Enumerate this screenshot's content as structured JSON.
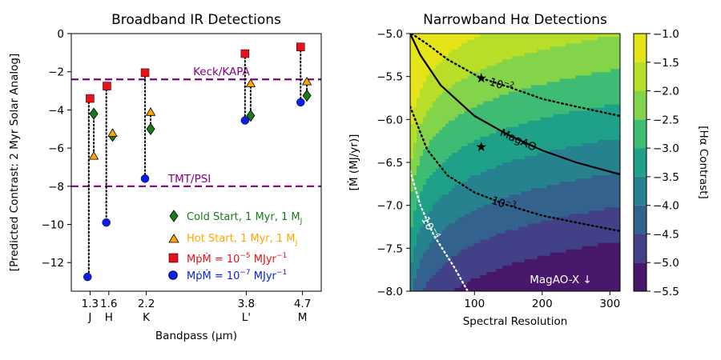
{
  "chart_data": [
    {
      "type": "scatter",
      "title": "Broadband IR Detections",
      "xlabel": "Bandpass (μm)",
      "ylabel": "[Predicted Contrast: 2 Myr Solar Analog]",
      "xlim": [
        1.0,
        5.0
      ],
      "ylim": [
        -13.5,
        0
      ],
      "yticks": [
        0,
        -2,
        -4,
        -6,
        -8,
        -10,
        -12
      ],
      "ytick_labels": [
        "0",
        "−2",
        "−4",
        "−6",
        "−8",
        "−10",
        "−12"
      ],
      "xticks": [
        {
          "x": 1.3,
          "value": "1.3",
          "band": "J"
        },
        {
          "x": 1.6,
          "value": "1.6",
          "band": "H"
        },
        {
          "x": 2.2,
          "value": "2.2",
          "band": "K"
        },
        {
          "x": 3.8,
          "value": "3.8",
          "band": "L'"
        },
        {
          "x": 4.7,
          "value": "4.7",
          "band": "M"
        }
      ],
      "reference_lines": [
        {
          "y": -2.4,
          "label": "Keck/KAPA",
          "label_x": 2.95
        },
        {
          "y": -8.0,
          "label": "TMT/PSI",
          "label_x": 2.55
        }
      ],
      "series": [
        {
          "name": "Cold Start, 1 Myr, 1 MJ",
          "legend_main": "Cold Start, 1 Myr, 1 M",
          "legend_sub": "J",
          "color": "#1a7a1a",
          "marker": "diamond",
          "points": [
            {
              "x": 1.36,
              "y": -4.2
            },
            {
              "x": 1.66,
              "y": -5.35
            },
            {
              "x": 2.27,
              "y": -5.0
            },
            {
              "x": 3.87,
              "y": -4.3
            },
            {
              "x": 4.77,
              "y": -3.25
            }
          ]
        },
        {
          "name": "Hot Start, 1 Myr, 1 MJ",
          "legend_main": "Hot Start, 1 Myr, 1 M",
          "legend_sub": "J",
          "color": "#ffa500",
          "marker": "triangle",
          "points": [
            {
              "x": 1.36,
              "y": -6.4
            },
            {
              "x": 1.66,
              "y": -5.2
            },
            {
              "x": 2.27,
              "y": -4.1
            },
            {
              "x": 3.87,
              "y": -2.6
            },
            {
              "x": 4.77,
              "y": -2.5
            }
          ]
        },
        {
          "name": "MpMdot = 10^-5 MJ yr^-1",
          "legend_expr": "MṗṀ = 10",
          "legend_exp": "−5",
          "legend_unit": " MJyr",
          "legend_unit_exp": "−1",
          "color": "#e8111b",
          "marker": "square",
          "points": [
            {
              "x": 1.3,
              "y": -3.4
            },
            {
              "x": 1.57,
              "y": -2.75
            },
            {
              "x": 2.18,
              "y": -2.05
            },
            {
              "x": 3.78,
              "y": -1.05
            },
            {
              "x": 4.67,
              "y": -0.7
            }
          ]
        },
        {
          "name": "MpMdot = 10^-7 MJ yr^-1",
          "legend_expr": "MṗṀ = 10",
          "legend_exp": "−7",
          "legend_unit": " MJyr",
          "legend_unit_exp": "−1",
          "color": "#0a1ee6",
          "marker": "circle",
          "points": [
            {
              "x": 1.26,
              "y": -12.75
            },
            {
              "x": 1.56,
              "y": -9.9
            },
            {
              "x": 2.18,
              "y": -7.6
            },
            {
              "x": 3.78,
              "y": -4.55
            },
            {
              "x": 4.67,
              "y": -3.6
            }
          ]
        }
      ],
      "connectors": [
        {
          "x": 1.28,
          "from": -3.4,
          "to": -12.75
        },
        {
          "x": 1.56,
          "from": -2.75,
          "to": -9.9
        },
        {
          "x": 2.18,
          "from": -2.05,
          "to": -7.6
        },
        {
          "x": 3.78,
          "from": -1.05,
          "to": -4.55
        },
        {
          "x": 4.67,
          "from": -0.7,
          "to": -3.6
        },
        {
          "x": 1.36,
          "from": -4.2,
          "to": -6.4
        },
        {
          "x": 1.66,
          "from": -5.2,
          "to": -5.35
        },
        {
          "x": 2.27,
          "from": -4.1,
          "to": -5.0
        },
        {
          "x": 3.87,
          "from": -2.6,
          "to": -4.3
        },
        {
          "x": 4.77,
          "from": -2.5,
          "to": -3.25
        }
      ]
    },
    {
      "type": "heatmap",
      "title": "Narrowband Hα Detections",
      "xlabel": "Spectral Resolution",
      "ylabel": "[Ṁ (MJ/yr)]",
      "xlim": [
        5,
        315
      ],
      "ylim": [
        -8.0,
        -5.0
      ],
      "xticks": [
        100,
        200,
        300
      ],
      "yticks": [
        -5.0,
        -5.5,
        -6.0,
        -6.5,
        -7.0,
        -7.5,
        -8.0
      ],
      "ytick_labels": [
        "−5.0",
        "−5.5",
        "−6.0",
        "−6.5",
        "−7.0",
        "−7.5",
        "−8.0"
      ],
      "colorbar_label": "[Hα Contrast]",
      "colorbar_ticks": [
        -1.0,
        -1.5,
        -2.0,
        -2.5,
        -3.0,
        -3.5,
        -4.0,
        -4.5,
        -5.0,
        -5.5
      ],
      "colorbar_tick_labels": [
        "−1.0",
        "−1.5",
        "−2.0",
        "−2.5",
        "−3.0",
        "−3.5",
        "−4.0",
        "−4.5",
        "−5.0",
        "−5.5"
      ],
      "levels": [
        -5.5,
        -5.0,
        -4.5,
        -4.0,
        -3.5,
        -3.0,
        -2.5,
        -2.0,
        -1.5,
        -1.0
      ],
      "level_colors": [
        "#48186a",
        "#424086",
        "#33638d",
        "#26828e",
        "#1fa088",
        "#3fbc73",
        "#84d44b",
        "#b8de29",
        "#e5e419"
      ],
      "contours": [
        {
          "label": "10",
          "exp": "−2",
          "style": "dotted",
          "color": "#000000",
          "points": [
            [
              7,
              -5.0
            ],
            [
              30,
              -5.12
            ],
            [
              60,
              -5.3
            ],
            [
              110,
              -5.52
            ],
            [
              150,
              -5.62
            ],
            [
              200,
              -5.76
            ],
            [
              250,
              -5.85
            ],
            [
              315,
              -5.96
            ]
          ],
          "label_x": 140
        },
        {
          "label": "MagAO",
          "style": "solid",
          "color": "#000000",
          "points": [
            [
              5,
              -5.0
            ],
            [
              20,
              -5.25
            ],
            [
              50,
              -5.6
            ],
            [
              100,
              -5.96
            ],
            [
              150,
              -6.18
            ],
            [
              200,
              -6.36
            ],
            [
              250,
              -6.5
            ],
            [
              315,
              -6.64
            ]
          ],
          "label_x": 165
        },
        {
          "label": "10",
          "exp": "−3",
          "style": "dotted",
          "color": "#000000",
          "points": [
            [
              5,
              -5.85
            ],
            [
              30,
              -6.35
            ],
            [
              60,
              -6.65
            ],
            [
              100,
              -6.85
            ],
            [
              150,
              -7.0
            ],
            [
              200,
              -7.12
            ],
            [
              250,
              -7.2
            ],
            [
              315,
              -7.3
            ]
          ],
          "label_x": 143
        },
        {
          "label": "10",
          "exp": "−4",
          "style": "dotted",
          "color": "#ffffff",
          "points": [
            [
              5,
              -6.6
            ],
            [
              20,
              -7.0
            ],
            [
              40,
              -7.35
            ],
            [
              70,
              -7.72
            ],
            [
              90,
              -8.0
            ]
          ],
          "label_x": 35
        }
      ],
      "stars": [
        {
          "x": 110,
          "y": -5.52
        },
        {
          "x": 110,
          "y": -6.32
        }
      ],
      "annotation": "MagAO-X ↓"
    }
  ]
}
